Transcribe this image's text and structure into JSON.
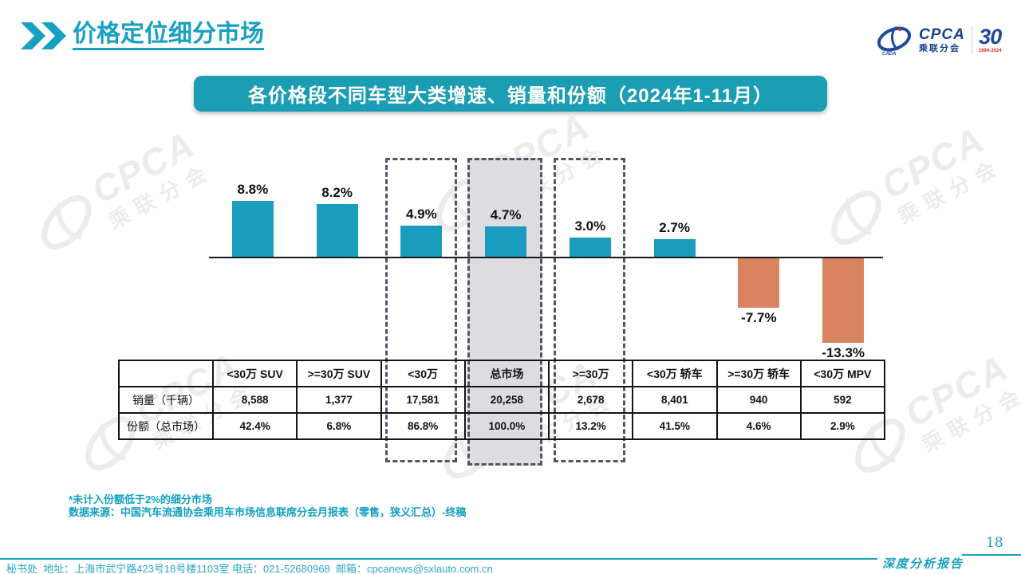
{
  "header": {
    "title": "价格定位细分市场",
    "logo": {
      "cpca": "CPCA",
      "sub": "乘联分会",
      "cada": "CADA",
      "anniversary": "30",
      "years": "1994-2024"
    }
  },
  "banner": {
    "title": "各价格段不同车型大类增速、销量和份额（2024年1-11月）"
  },
  "chart_data": {
    "type": "bar",
    "title": "各价格段不同车型大类增速、销量和份额（2024年1-11月）",
    "categories": [
      "<30万 SUV",
      ">=30万 SUV",
      "<30万",
      "总市场",
      ">=30万",
      "<30万 轿车",
      ">=30万 轿车",
      "<30万 MPV"
    ],
    "values": [
      8.8,
      8.2,
      4.9,
      4.7,
      3.0,
      2.7,
      -7.7,
      -13.3
    ],
    "labels": [
      "8.8%",
      "8.2%",
      "4.9%",
      "4.7%",
      "3.0%",
      "2.7%",
      "-7.7%",
      "-13.3%"
    ],
    "positive_color": "#199cbe",
    "negative_color": "#d8825f",
    "highlighted_categories": [
      "<30万",
      "总市场",
      ">=30万"
    ],
    "xlabel": "",
    "ylabel": "",
    "ylim": [
      -15,
      10
    ],
    "grid": false,
    "legend": false
  },
  "table": {
    "row_headers": [
      "销量（千辆）",
      "份额（总市场）"
    ],
    "columns": [
      "<30万 SUV",
      ">=30万 SUV",
      "<30万",
      "总市场",
      ">=30万",
      "<30万 轿车",
      ">=30万 轿车",
      "<30万 MPV"
    ],
    "rows": [
      [
        "8,588",
        "1,377",
        "17,581",
        "20,258",
        "2,678",
        "8,401",
        "940",
        "592"
      ],
      [
        "42.4%",
        "6.8%",
        "86.8%",
        "100.0%",
        "13.2%",
        "41.5%",
        "4.6%",
        "2.9%"
      ]
    ],
    "highlight_column": "总市场"
  },
  "footnotes": {
    "line1": "*未计入份额低于2%的细分市场",
    "line2": "数据来源：中国汽车流通协会乘用车市场信息联席分会月报表（零售，狭义汇总）-终稿"
  },
  "footer": {
    "left": "秘书处  地址：上海市武宁路423号18号楼1103室 电话：021-52680968  邮箱：cpcanews@sxlauto.com.cn",
    "report": "深度分析报告",
    "page_number": "18"
  },
  "watermark": {
    "line1": "CPCA",
    "line2": "乘联分会"
  },
  "colors": {
    "teal": "#17a0c2",
    "orange": "#d8825f",
    "banner": "#1b9db4",
    "gray_highlight": "#dcdce1",
    "dash": "#4e5663"
  }
}
